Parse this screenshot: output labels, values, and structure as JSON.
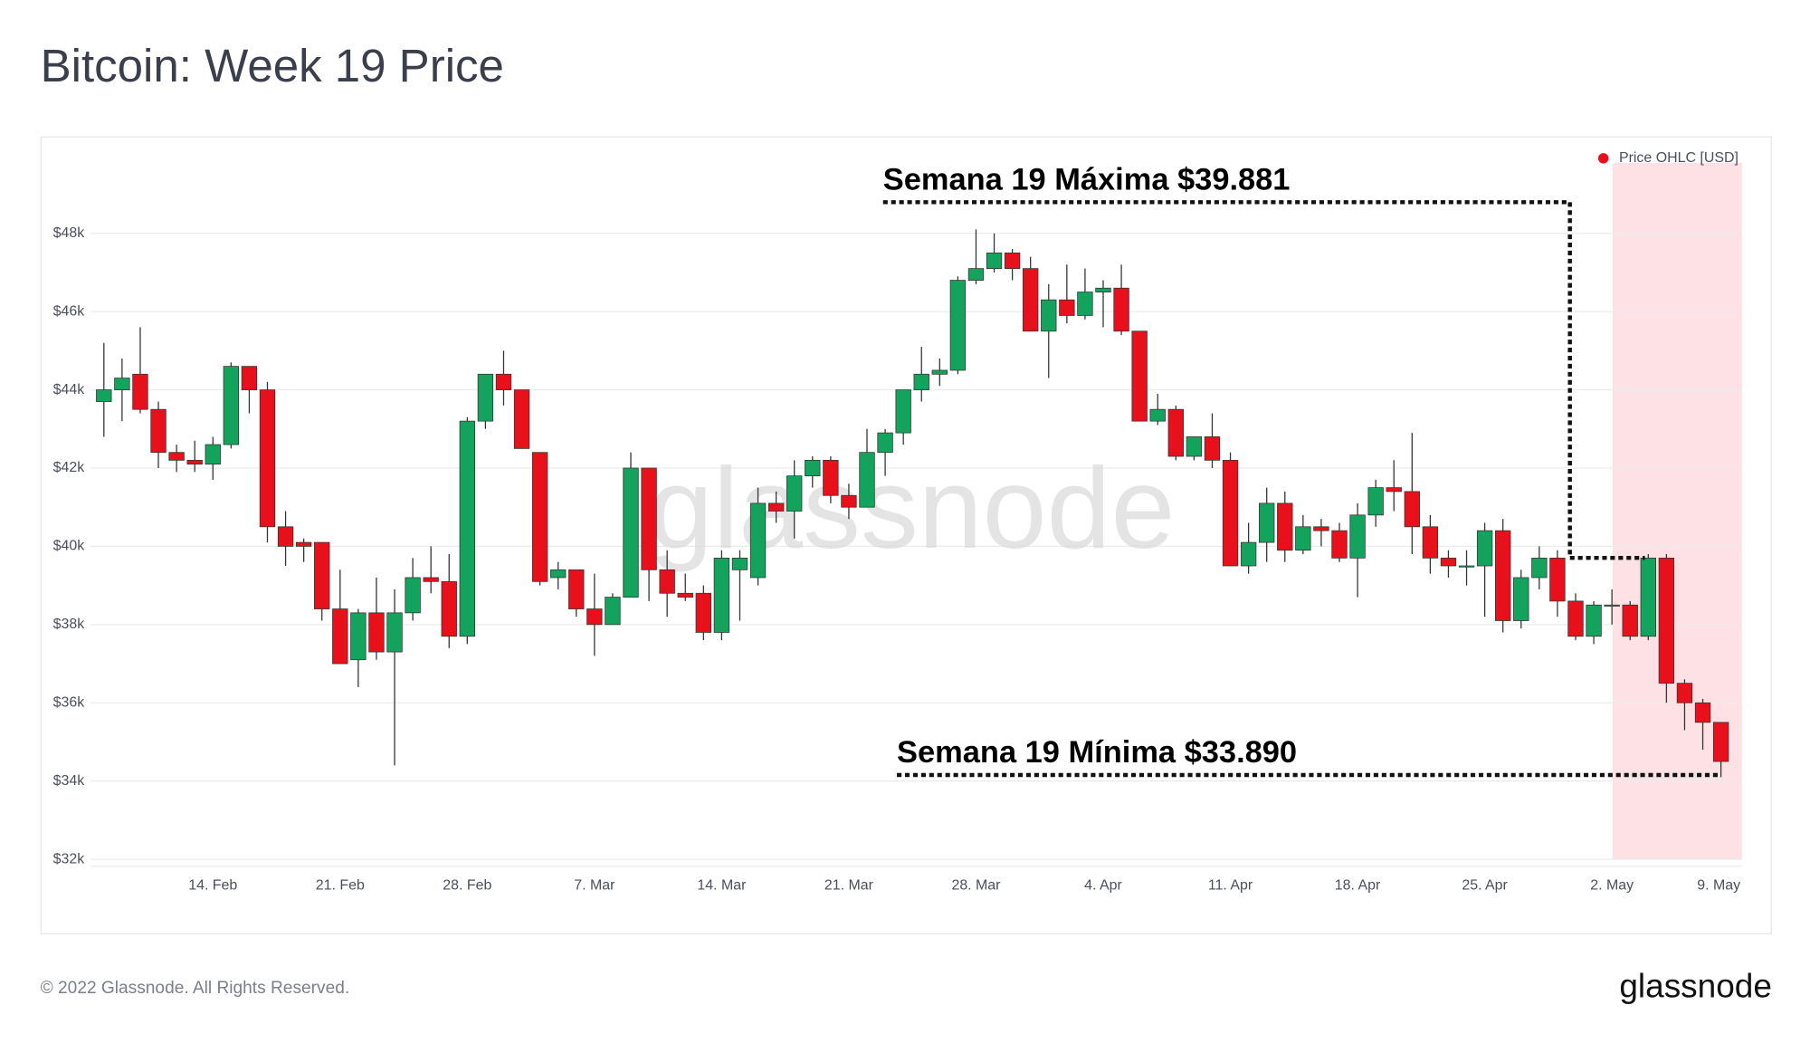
{
  "header": {
    "title": "Bitcoin: Week 19 Price"
  },
  "footer": {
    "copyright": "© 2022 Glassnode. All Rights Reserved.",
    "logo": "glassnode"
  },
  "watermark": "glassnode",
  "chart_data": {
    "type": "candlestick",
    "legend": "Price OHLC [USD]",
    "legend_position": "top-right",
    "legend_color": "#e8101a",
    "up_color": "#14a35c",
    "down_color": "#e8101a",
    "grid": true,
    "annotations": [
      "Semana 19 Máxima $39.881",
      "Semana 19 Mínima $33.890"
    ],
    "ylim": [
      32000,
      49800
    ],
    "yticks": [
      {
        "value": 32000,
        "label": "$32k"
      },
      {
        "value": 34000,
        "label": "$34k"
      },
      {
        "value": 36000,
        "label": "$36k"
      },
      {
        "value": 38000,
        "label": "$38k"
      },
      {
        "value": 40000,
        "label": "$40k"
      },
      {
        "value": 42000,
        "label": "$42k"
      },
      {
        "value": 44000,
        "label": "$44k"
      },
      {
        "value": 46000,
        "label": "$46k"
      },
      {
        "value": 48000,
        "label": "$48k"
      }
    ],
    "xticks": [
      "14. Feb",
      "21. Feb",
      "28. Feb",
      "7. Mar",
      "14. Mar",
      "21. Mar",
      "28. Mar",
      "4. Apr",
      "11. Apr",
      "18. Apr",
      "25. Apr",
      "2. May",
      "9. May"
    ],
    "x": [
      "8. Feb",
      "9. Feb",
      "10. Feb",
      "11. Feb",
      "12. Feb",
      "13. Feb",
      "14. Feb",
      "15. Feb",
      "16. Feb",
      "17. Feb",
      "18. Feb",
      "19. Feb",
      "20. Feb",
      "21. Feb",
      "22. Feb",
      "23. Feb",
      "24. Feb",
      "25. Feb",
      "26. Feb",
      "27. Feb",
      "28. Feb",
      "1. Mar",
      "2. Mar",
      "3. Mar",
      "4. Mar",
      "5. Mar",
      "6. Mar",
      "7. Mar",
      "8. Mar",
      "9. Mar",
      "10. Mar",
      "11. Mar",
      "12. Mar",
      "13. Mar",
      "14. Mar",
      "15. Mar",
      "16. Mar",
      "17. Mar",
      "18. Mar",
      "19. Mar",
      "20. Mar",
      "21. Mar",
      "22. Mar",
      "23. Mar",
      "24. Mar",
      "25. Mar",
      "26. Mar",
      "27. Mar",
      "28. Mar",
      "29. Mar",
      "30. Mar",
      "31. Mar",
      "1. Apr",
      "2. Apr",
      "3. Apr",
      "4. Apr",
      "5. Apr",
      "6. Apr",
      "7. Apr",
      "8. Apr",
      "9. Apr",
      "10. Apr",
      "11. Apr",
      "12. Apr",
      "13. Apr",
      "14. Apr",
      "15. Apr",
      "16. Apr",
      "17. Apr",
      "18. Apr",
      "19. Apr",
      "20. Apr",
      "21. Apr",
      "22. Apr",
      "23. Apr",
      "24. Apr",
      "25. Apr",
      "26. Apr",
      "27. Apr",
      "28. Apr",
      "29. Apr",
      "30. Apr",
      "1. May",
      "2. May",
      "3. May",
      "4. May",
      "5. May",
      "6. May",
      "7. May",
      "8. May"
    ],
    "open": [
      43700,
      44000,
      44400,
      43500,
      42400,
      42200,
      42100,
      42600,
      44600,
      44000,
      40500,
      40100,
      40100,
      38400,
      37100,
      38300,
      37300,
      38300,
      39200,
      39100,
      37700,
      43200,
      44400,
      44000,
      42400,
      39200,
      39400,
      38400,
      38000,
      38700,
      42000,
      39400,
      38800,
      38800,
      37800,
      39400,
      39200,
      41100,
      40900,
      41800,
      42200,
      41300,
      41000,
      42400,
      42900,
      44000,
      44400,
      44500,
      46800,
      47100,
      47500,
      47100,
      45500,
      46300,
      45900,
      46500,
      46600,
      45500,
      43200,
      43500,
      42300,
      42800,
      42200,
      39500,
      40100,
      41100,
      39900,
      40500,
      40400,
      39700,
      40800,
      41500,
      41400,
      40500,
      39700,
      39500,
      39500,
      40400,
      38100,
      39200,
      39700,
      38600,
      37700,
      38500,
      38500,
      37700,
      39700,
      36500,
      36000,
      35500
    ],
    "high": [
      45200,
      44800,
      45600,
      43700,
      42600,
      42700,
      42800,
      44700,
      44600,
      44200,
      40900,
      40200,
      40100,
      39400,
      38400,
      39200,
      38900,
      39700,
      40000,
      39800,
      43300,
      44400,
      45000,
      44000,
      42400,
      39600,
      39400,
      39300,
      38800,
      42400,
      42000,
      39900,
      39300,
      39000,
      39900,
      39900,
      41500,
      41400,
      42200,
      42300,
      42300,
      41600,
      43000,
      43000,
      44000,
      45100,
      44800,
      46900,
      48100,
      48000,
      47600,
      47400,
      46700,
      47200,
      47100,
      46800,
      47200,
      45500,
      43900,
      43600,
      42800,
      43400,
      42400,
      40600,
      41500,
      41400,
      40800,
      40700,
      40600,
      41100,
      41700,
      42200,
      42900,
      40800,
      39900,
      39900,
      40600,
      40700,
      39400,
      40000,
      39900,
      38800,
      38600,
      38900,
      38600,
      39800,
      39800,
      36600,
      36100,
      35500
    ],
    "low": [
      42800,
      43200,
      43400,
      42000,
      41900,
      41900,
      41700,
      42500,
      43400,
      40100,
      39500,
      39600,
      38100,
      37000,
      36400,
      37100,
      34400,
      38100,
      38800,
      37400,
      37500,
      43000,
      43600,
      42500,
      39000,
      38900,
      38200,
      37200,
      38000,
      38700,
      38600,
      38200,
      38600,
      37600,
      37600,
      38100,
      39000,
      40600,
      40200,
      41500,
      41100,
      40700,
      41000,
      41800,
      42600,
      43700,
      44100,
      44400,
      46700,
      47000,
      46800,
      45600,
      44300,
      45700,
      45800,
      45600,
      45400,
      43200,
      43100,
      42200,
      42200,
      42000,
      39500,
      39300,
      39600,
      39600,
      39800,
      40000,
      39600,
      38700,
      40500,
      40900,
      39800,
      39300,
      39200,
      39000,
      38200,
      37800,
      37900,
      38900,
      38200,
      37600,
      37500,
      38000,
      37600,
      37600,
      36000,
      35300,
      34800,
      34100
    ],
    "close": [
      44000,
      44300,
      43500,
      42400,
      42200,
      42100,
      42600,
      44600,
      44000,
      40500,
      40000,
      40000,
      38400,
      37000,
      38300,
      37300,
      38300,
      39200,
      39100,
      37700,
      43200,
      44400,
      44000,
      42500,
      39100,
      39400,
      38400,
      38000,
      38700,
      42000,
      39400,
      38800,
      38700,
      37800,
      39700,
      39700,
      41100,
      40900,
      41800,
      42200,
      41300,
      41000,
      42400,
      42900,
      44000,
      44400,
      44500,
      46800,
      47100,
      47500,
      47100,
      45500,
      46300,
      45900,
      46500,
      46600,
      45500,
      43200,
      43500,
      42300,
      42800,
      42200,
      39500,
      40100,
      41100,
      39900,
      40500,
      40400,
      39700,
      40800,
      41500,
      41400,
      40500,
      39700,
      39500,
      39500,
      40400,
      38100,
      39200,
      39700,
      38600,
      37700,
      38500,
      38500,
      37700,
      39700,
      36500,
      36000,
      35500,
      34500
    ]
  }
}
